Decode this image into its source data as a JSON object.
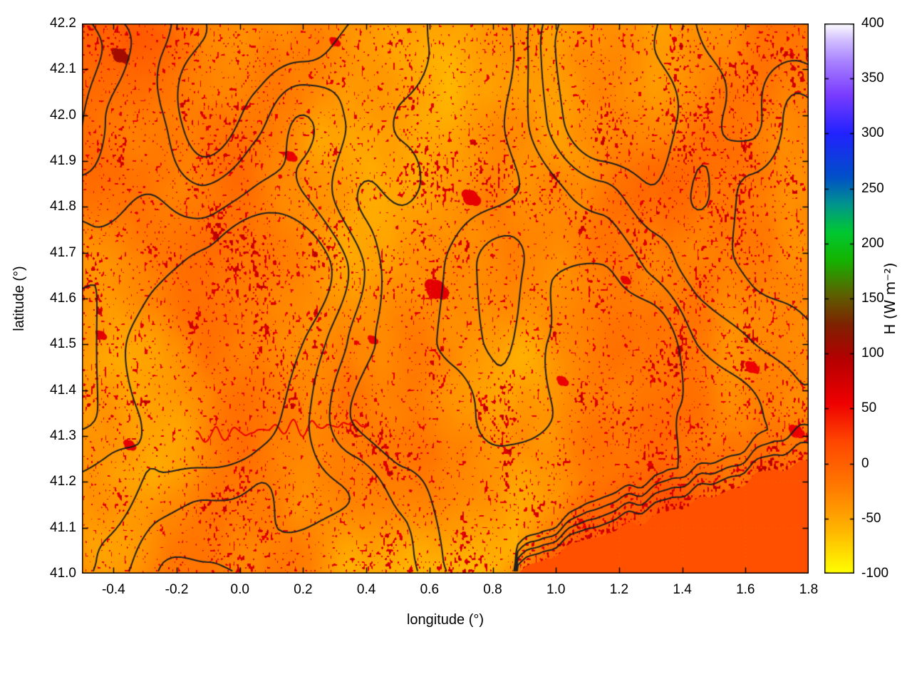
{
  "chart_data": {
    "type": "heatmap",
    "xlabel": "longitude (°)",
    "ylabel": "latitude (°)",
    "colorbar_label": "H (W m⁻²)",
    "xlim": [
      -0.5,
      1.8
    ],
    "ylim": [
      41.0,
      42.2
    ],
    "colorbar_lim": [
      -100,
      400
    ],
    "xticks": {
      "values": [
        -0.4,
        -0.2,
        0.0,
        0.2,
        0.4,
        0.6,
        0.8,
        1.0,
        1.2,
        1.4,
        1.6,
        1.8
      ],
      "labels": [
        "-0.4",
        "-0.2",
        "0.0",
        "0.2",
        "0.4",
        "0.6",
        "0.8",
        "1.0",
        "1.2",
        "1.4",
        "1.6",
        "1.8"
      ]
    },
    "yticks": {
      "values": [
        41.0,
        41.1,
        41.2,
        41.3,
        41.4,
        41.5,
        41.6,
        41.7,
        41.8,
        41.9,
        42.0,
        42.1,
        42.2
      ],
      "labels": [
        "41.0",
        "41.1",
        "41.2",
        "41.3",
        "41.4",
        "41.5",
        "41.6",
        "41.7",
        "41.8",
        "41.9",
        "42.0",
        "42.1",
        "42.2"
      ]
    },
    "colorbar_ticks": {
      "values": [
        -100,
        -50,
        0,
        50,
        100,
        150,
        200,
        250,
        300,
        350,
        400
      ],
      "labels": [
        "-100",
        "-50",
        "0",
        "50",
        "100",
        "150",
        "200",
        "250",
        "300",
        "350",
        "400"
      ]
    },
    "palette": [
      {
        "value": -100,
        "color": "#ffff00"
      },
      {
        "value": -60,
        "color": "#ffb400"
      },
      {
        "value": -20,
        "color": "#ff7800"
      },
      {
        "value": 20,
        "color": "#ff4600"
      },
      {
        "value": 55,
        "color": "#ee0000"
      },
      {
        "value": 95,
        "color": "#b40000"
      },
      {
        "value": 125,
        "color": "#802000"
      },
      {
        "value": 155,
        "color": "#5a6400"
      },
      {
        "value": 185,
        "color": "#14b400"
      },
      {
        "value": 210,
        "color": "#00c832"
      },
      {
        "value": 235,
        "color": "#00968c"
      },
      {
        "value": 260,
        "color": "#0050c8"
      },
      {
        "value": 300,
        "color": "#2222ff"
      },
      {
        "value": 335,
        "color": "#7a3cff"
      },
      {
        "value": 365,
        "color": "#a882ff"
      },
      {
        "value": 385,
        "color": "#d2c0ff"
      },
      {
        "value": 400,
        "color": "#ffffff"
      }
    ],
    "grid": {
      "style": "dotted",
      "color": "rgba(235,150,0,0.35)"
    },
    "contours": {
      "color": "#1f1f1f",
      "count": 4
    },
    "field_summary": {
      "land_typical_range_W_m2": [
        -75,
        10
      ],
      "hotspot_range_W_m2": [
        50,
        110
      ],
      "sea_value_W_m2": 12
    },
    "sea": {
      "value": 12,
      "coastline": [
        [
          0.88,
          41.0
        ],
        [
          1.02,
          41.05
        ],
        [
          1.18,
          41.09
        ],
        [
          1.34,
          41.13
        ],
        [
          1.5,
          41.17
        ],
        [
          1.66,
          41.22
        ],
        [
          1.8,
          41.25
        ]
      ]
    },
    "hotspots": [
      {
        "lon": -0.38,
        "lat": 42.13,
        "r": 0.022,
        "value": 105
      },
      {
        "lon": 0.62,
        "lat": 41.62,
        "r": 0.03,
        "value": 62
      },
      {
        "lon": 0.73,
        "lat": 41.82,
        "r": 0.024,
        "value": 60
      },
      {
        "lon": 0.16,
        "lat": 41.91,
        "r": 0.016,
        "value": 58
      },
      {
        "lon": -0.35,
        "lat": 41.28,
        "r": 0.016,
        "value": 60
      },
      {
        "lon": -0.44,
        "lat": 41.52,
        "r": 0.014,
        "value": 62
      },
      {
        "lon": 0.42,
        "lat": 41.51,
        "r": 0.013,
        "value": 58
      },
      {
        "lon": 1.22,
        "lat": 41.64,
        "r": 0.013,
        "value": 60
      },
      {
        "lon": 1.02,
        "lat": 41.42,
        "r": 0.015,
        "value": 58
      },
      {
        "lon": 1.62,
        "lat": 41.45,
        "r": 0.018,
        "value": 55
      },
      {
        "lon": 1.76,
        "lat": 41.31,
        "r": 0.02,
        "value": 55
      },
      {
        "lon": 0.3,
        "lat": 42.16,
        "r": 0.014,
        "value": 58
      }
    ],
    "red_meander": {
      "from": [
        -0.14,
        41.3
      ],
      "to": [
        0.4,
        41.33
      ],
      "value": 58
    }
  }
}
